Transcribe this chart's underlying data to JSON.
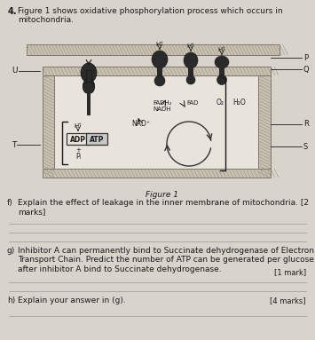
{
  "background_color": "#d8d4cc",
  "page_bg": "#d0ccc4",
  "question_number": "4.",
  "intro_text": "Figure 1 shows oxidative phosphorylation process which occurs in\nmitochondria.",
  "figure_caption": "Figure 1",
  "question_f_label": "f)",
  "question_f_text": "Explain the effect of leakage in the inner membrane of mitochondria. [2\nmarks]",
  "question_g_label": "g)",
  "question_g_text": "Inhibitor A can permanently bind to Succinate dehydrogenase of Electron\nTransport Chain. Predict the number of ATP can be generated per glucose\nafter inhibitor A bind to Succinate dehydrogenase.",
  "question_g_marks": "[1 mark]",
  "question_h_label": "h)",
  "question_h_text": "Explain your answer in (g).",
  "question_h_marks": "[4 marks]",
  "text_color": "#1a1a1a",
  "label_P": "P",
  "label_Q": "Q",
  "label_R": "R",
  "label_S": "S",
  "label_U": "U",
  "label_T": "T",
  "mem_face": "#b0a898",
  "mem_hatch_color": "#808070",
  "protein_dark": "#2a2a2a",
  "protein_mid": "#3a3a3a"
}
